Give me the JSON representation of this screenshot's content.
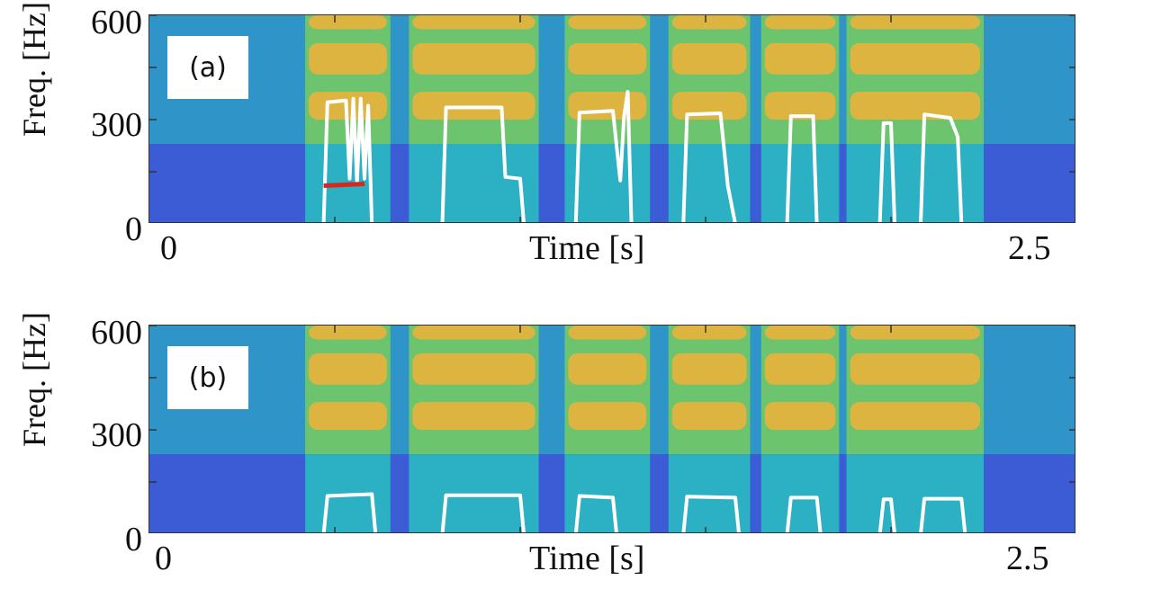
{
  "chart_data": [
    {
      "type": "heatmap",
      "panel_label": "(a)",
      "ylabel": "Freq. [Hz]",
      "xlabel": "Time [s]",
      "yticks": [
        "0",
        "300",
        "600"
      ],
      "xticks": [
        "0",
        "2.5"
      ],
      "xlim": [
        0,
        2.5
      ],
      "ylim": [
        0,
        600
      ],
      "colormap": [
        "#3d52d6",
        "#2aa6c9",
        "#6cc46f",
        "#f2b23a"
      ],
      "series": [
        {
          "name": "",
          "color": "#ffffff",
          "points": [
            [
              0.47,
              0
            ],
            [
              0.48,
              350
            ],
            [
              0.53,
              355
            ],
            [
              0.54,
              130
            ],
            [
              0.55,
              360
            ],
            [
              0.56,
              120
            ],
            [
              0.57,
              360
            ],
            [
              0.58,
              130
            ],
            [
              0.59,
              340
            ],
            [
              0.6,
              0
            ],
            [
              0.79,
              0
            ],
            [
              0.8,
              335
            ],
            [
              0.95,
              335
            ],
            [
              0.96,
              135
            ],
            [
              1.0,
              130
            ],
            [
              1.01,
              0
            ],
            [
              1.15,
              0
            ],
            [
              1.16,
              320
            ],
            [
              1.25,
              325
            ],
            [
              1.27,
              125
            ],
            [
              1.28,
              310
            ],
            [
              1.29,
              380
            ],
            [
              1.3,
              0
            ],
            [
              1.44,
              0
            ],
            [
              1.45,
              315
            ],
            [
              1.54,
              318
            ],
            [
              1.56,
              110
            ],
            [
              1.58,
              0
            ],
            [
              1.72,
              0
            ],
            [
              1.73,
              310
            ],
            [
              1.79,
              310
            ],
            [
              1.8,
              0
            ],
            [
              1.97,
              0
            ],
            [
              1.98,
              290
            ],
            [
              2.0,
              290
            ],
            [
              2.01,
              0
            ],
            [
              2.08,
              0
            ],
            [
              2.09,
              315
            ],
            [
              2.16,
              305
            ],
            [
              2.18,
              250
            ],
            [
              2.19,
              0
            ]
          ]
        },
        {
          "name": "",
          "color": "#d42a1e",
          "points": [
            [
              0.47,
              110
            ],
            [
              0.58,
              115
            ]
          ]
        }
      ]
    },
    {
      "type": "heatmap",
      "panel_label": "(b)",
      "ylabel": "Freq. [Hz]",
      "xlabel": "Time [s]",
      "yticks": [
        "0",
        "300",
        "600"
      ],
      "xticks": [
        "0",
        "2.5"
      ],
      "xlim": [
        0,
        2.5
      ],
      "ylim": [
        0,
        600
      ],
      "colormap": [
        "#3d52d6",
        "#2aa6c9",
        "#6cc46f",
        "#f2b23a"
      ],
      "series": [
        {
          "name": "",
          "color": "#ffffff",
          "points": [
            [
              0.47,
              0
            ],
            [
              0.48,
              110
            ],
            [
              0.6,
              115
            ],
            [
              0.61,
              0
            ],
            [
              0.79,
              0
            ],
            [
              0.8,
              112
            ],
            [
              1.0,
              112
            ],
            [
              1.01,
              0
            ],
            [
              1.15,
              0
            ],
            [
              1.16,
              110
            ],
            [
              1.25,
              105
            ],
            [
              1.26,
              0
            ],
            [
              1.44,
              0
            ],
            [
              1.45,
              108
            ],
            [
              1.58,
              105
            ],
            [
              1.59,
              0
            ],
            [
              1.72,
              0
            ],
            [
              1.73,
              105
            ],
            [
              1.8,
              105
            ],
            [
              1.81,
              0
            ],
            [
              1.97,
              0
            ],
            [
              1.98,
              100
            ],
            [
              2.0,
              100
            ],
            [
              2.01,
              0
            ],
            [
              2.08,
              0
            ],
            [
              2.09,
              102
            ],
            [
              2.19,
              102
            ],
            [
              2.2,
              0
            ]
          ]
        }
      ]
    }
  ]
}
